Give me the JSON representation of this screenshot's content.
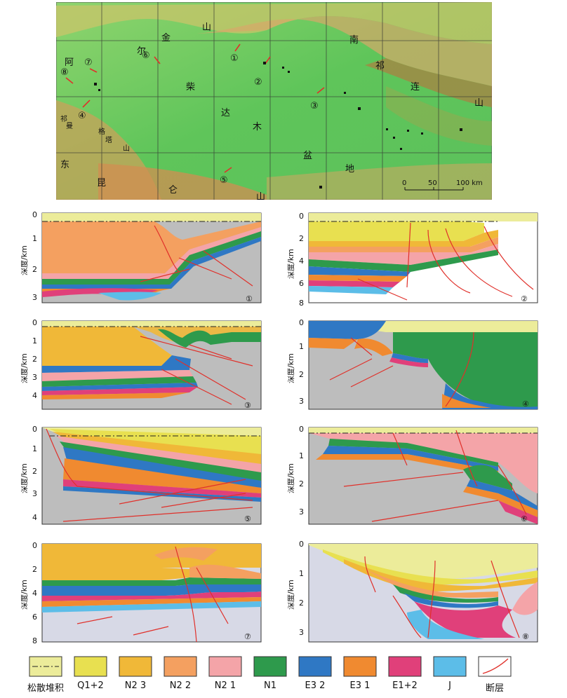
{
  "map": {
    "labels": [
      "山",
      "金",
      "尔",
      "阿",
      "柴",
      "达",
      "木",
      "盆",
      "地",
      "南",
      "祁",
      "连",
      "山",
      "东",
      "昆",
      "仑",
      "山",
      "祁",
      "曼",
      "塔",
      "格",
      "山"
    ],
    "markers": [
      "①",
      "②",
      "③",
      "④",
      "⑤",
      "⑥",
      "⑦",
      "⑧"
    ],
    "scale": {
      "zero": "0",
      "mid": "50",
      "end": "100 km"
    }
  },
  "sections": [
    {
      "id": "①",
      "depth_ticks": [
        "0",
        "1",
        "2",
        "3"
      ],
      "axis_title": "深度/km"
    },
    {
      "id": "②",
      "depth_ticks": [
        "0",
        "2",
        "4",
        "6",
        "8"
      ],
      "axis_title": "深度/km"
    },
    {
      "id": "③",
      "depth_ticks": [
        "0",
        "1",
        "2",
        "3",
        "4"
      ],
      "axis_title": "深度/km"
    },
    {
      "id": "④",
      "depth_ticks": [
        "0",
        "1",
        "2",
        "3"
      ],
      "axis_title": "深度/km"
    },
    {
      "id": "⑤",
      "depth_ticks": [
        "0",
        "1",
        "2",
        "3",
        "4"
      ],
      "axis_title": "深度/km"
    },
    {
      "id": "⑥",
      "depth_ticks": [
        "0",
        "1",
        "2",
        "3"
      ],
      "axis_title": "深度/km"
    },
    {
      "id": "⑦",
      "depth_ticks": [
        "0",
        "2",
        "4",
        "6",
        "8"
      ],
      "axis_title": "深度/km"
    },
    {
      "id": "⑧",
      "depth_ticks": [
        "0",
        "1",
        "2",
        "3"
      ],
      "axis_title": "深度/km"
    }
  ],
  "legend": [
    {
      "label": "松散堆积",
      "color": "#ecec9a",
      "kind": "loose"
    },
    {
      "label": "Q1+2",
      "color": "#e8e050",
      "kind": "fill"
    },
    {
      "label": "N2 3",
      "color": "#f0b838",
      "kind": "fill"
    },
    {
      "label": "N2 2",
      "color": "#f4a060",
      "kind": "fill"
    },
    {
      "label": "N2 1",
      "color": "#f4a4a8",
      "kind": "fill"
    },
    {
      "label": "N1",
      "color": "#2e9a4c",
      "kind": "fill"
    },
    {
      "label": "E3 2",
      "color": "#2f78c4",
      "kind": "fill"
    },
    {
      "label": "E3 1",
      "color": "#f08a30",
      "kind": "fill"
    },
    {
      "label": "E1+2",
      "color": "#e0407a",
      "kind": "fill"
    },
    {
      "label": "J",
      "color": "#5cbde8",
      "kind": "fill"
    },
    {
      "label": "断层",
      "color": "#ffffff",
      "kind": "fault"
    }
  ]
}
